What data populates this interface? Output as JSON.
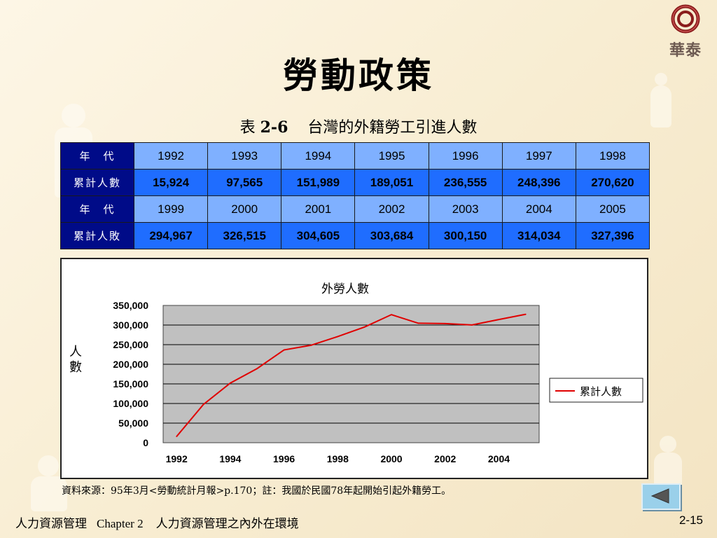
{
  "logo": {
    "brand_text": "華泰",
    "icon": "ring-logo-icon"
  },
  "title": "勞動政策",
  "caption": {
    "prefix": "表",
    "number": "2-6",
    "text": "台灣的外籍勞工引進人數"
  },
  "table": {
    "rows": [
      {
        "type": "year",
        "label": "年　代",
        "values": [
          "1992",
          "1993",
          "1994",
          "1995",
          "1996",
          "1997",
          "1998"
        ]
      },
      {
        "type": "count",
        "label": "累計人數",
        "values": [
          "15,924",
          "97,565",
          "151,989",
          "189,051",
          "236,555",
          "248,396",
          "270,620"
        ]
      },
      {
        "type": "year",
        "label": "年　代",
        "values": [
          "1999",
          "2000",
          "2001",
          "2002",
          "2003",
          "2004",
          "2005"
        ]
      },
      {
        "type": "count",
        "label": "累計人敗",
        "values": [
          "294,967",
          "326,515",
          "304,605",
          "303,684",
          "300,150",
          "314,034",
          "327,396"
        ]
      }
    ]
  },
  "chart_data": {
    "type": "line",
    "title": "外勞人數",
    "ylabel": "人數",
    "xlabel": "",
    "x": [
      1992,
      1993,
      1994,
      1995,
      1996,
      1997,
      1998,
      1999,
      2000,
      2001,
      2002,
      2003,
      2004,
      2005
    ],
    "series": [
      {
        "name": "累計人數",
        "color": "#e00000",
        "values": [
          15924,
          97565,
          151989,
          189051,
          236555,
          248396,
          270620,
          294967,
          326515,
          304605,
          303684,
          300150,
          314034,
          327396
        ]
      }
    ],
    "ylim": [
      0,
      350000
    ],
    "yticks": [
      "0",
      "50,000",
      "100,000",
      "150,000",
      "200,000",
      "250,000",
      "300,000",
      "350,000"
    ],
    "xticks": [
      "1992",
      "1994",
      "1996",
      "1998",
      "2000",
      "2002",
      "2004"
    ],
    "plot_background": "#c0c0c0",
    "grid": true,
    "legend": "right"
  },
  "source_note": "資料來源：95年3月<勞動統計月報>p.170；註：我國於民國78年起開始引起外籍勞工。",
  "footer": {
    "course": "人力資源管理",
    "chapter": "Chapter 2",
    "chapter_title": "人力資源管理之內外在環境",
    "page": "2-15"
  },
  "nav": {
    "back_icon": "back-arrow-icon"
  }
}
